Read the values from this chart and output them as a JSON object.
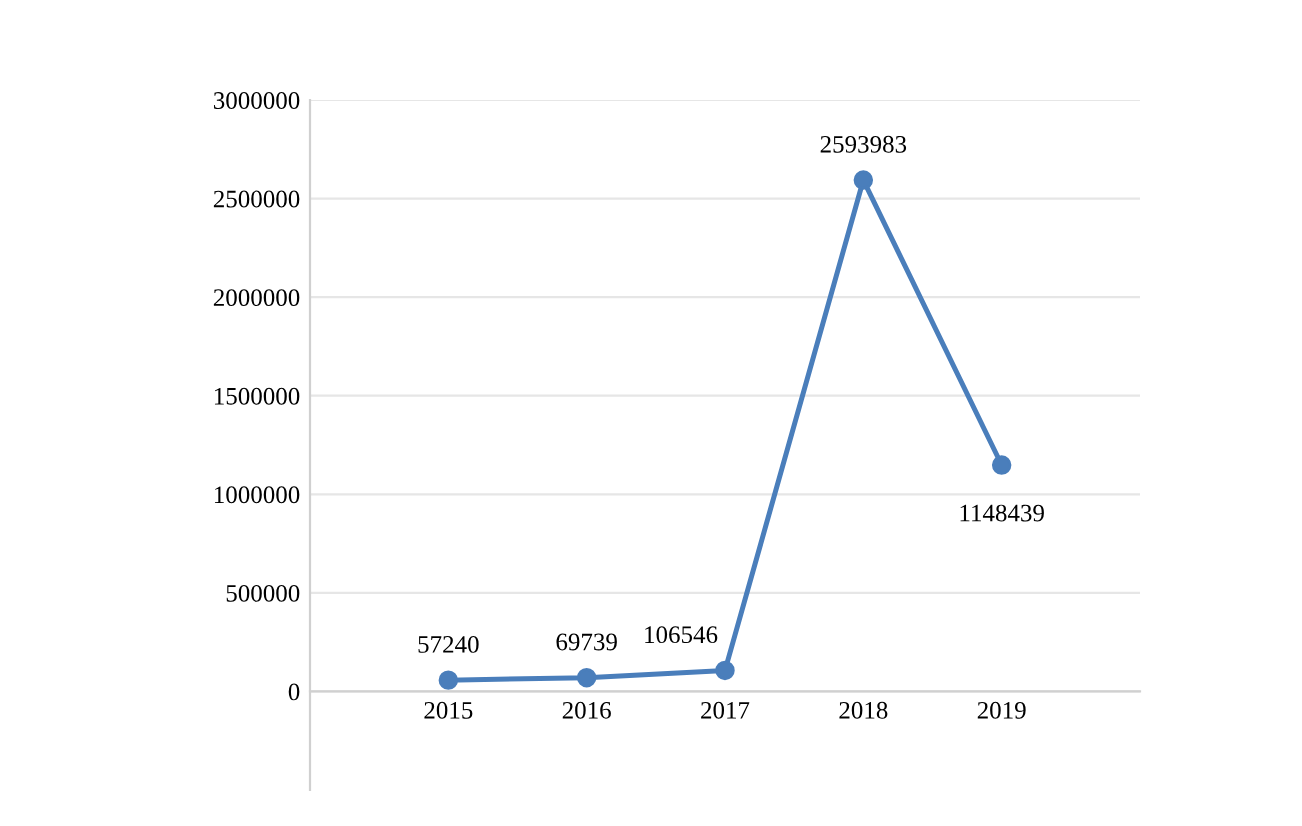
{
  "chart_data": {
    "type": "line",
    "categories": [
      "2015",
      "2016",
      "2017",
      "2018",
      "2019"
    ],
    "series": [
      {
        "color": "#4a7ebb",
        "values": [
          57240,
          69739,
          106546,
          2593983,
          1148439
        ]
      }
    ],
    "ylim": [
      -500000,
      3000000
    ],
    "yticks": [
      0,
      500000,
      1000000,
      1500000,
      2000000,
      2500000,
      3000000
    ],
    "grid": "y",
    "marker": "circle",
    "data_labels": true
  }
}
